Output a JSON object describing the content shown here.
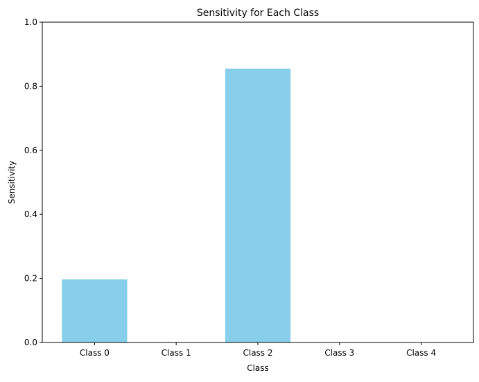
{
  "chart_data": {
    "type": "bar",
    "title": "Sensitivity for Each Class",
    "xlabel": "Class",
    "ylabel": "Sensitivity",
    "categories": [
      "Class 0",
      "Class 1",
      "Class 2",
      "Class 3",
      "Class 4"
    ],
    "values": [
      0.197,
      0.0,
      0.855,
      0.0,
      0.0
    ],
    "ylim": [
      0,
      1
    ],
    "yticks": [
      0.0,
      0.2,
      0.4,
      0.6,
      0.8,
      1.0
    ],
    "ytick_labels": [
      "0.0",
      "0.2",
      "0.4",
      "0.6",
      "0.8",
      "1.0"
    ],
    "grid": false,
    "legend": "none",
    "bar_color": "#87CEEB",
    "axis_color": "#000000"
  }
}
